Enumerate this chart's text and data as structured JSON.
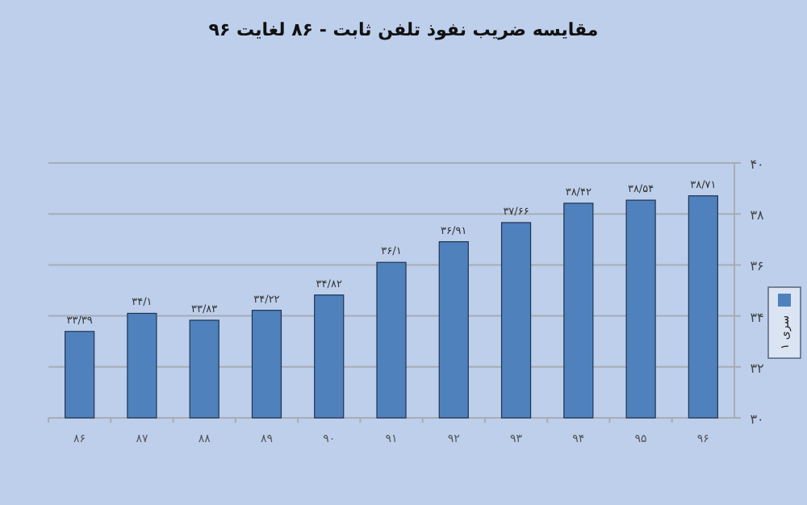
{
  "chart_data": {
    "type": "bar",
    "title": "مقایسه ضریب نفوذ تلفن ثابت - ۸۶ لغایت ۹۶",
    "categories": [
      "۸۶",
      "۸۷",
      "۸۸",
      "۸۹",
      "۹۰",
      "۹۱",
      "۹۲",
      "۹۳",
      "۹۴",
      "۹۵",
      "۹۶"
    ],
    "series": [
      {
        "name": "سری ۱",
        "color": "#4f81bd",
        "values": [
          33.39,
          34.1,
          33.83,
          34.22,
          34.82,
          36.1,
          36.91,
          37.66,
          38.42,
          38.54,
          38.71
        ],
        "value_labels": [
          "۳۳/۳۹",
          "۳۴/۱",
          "۳۳/۸۳",
          "۳۴/۲۲",
          "۳۴/۸۲",
          "۳۶/۱",
          "۳۶/۹۱",
          "۳۷/۶۶",
          "۳۸/۴۲",
          "۳۸/۵۴",
          "۳۸/۷۱"
        ]
      }
    ],
    "ylim": [
      30,
      40
    ],
    "yticks": [
      {
        "value": 30,
        "label": "۳۰"
      },
      {
        "value": 32,
        "label": "۳۲"
      },
      {
        "value": 34,
        "label": "۳۴"
      },
      {
        "value": 36,
        "label": "۳۶"
      },
      {
        "value": 38,
        "label": "۳۸"
      },
      {
        "value": 40,
        "label": "۴۰"
      }
    ],
    "grid": "y",
    "legend": "right"
  }
}
